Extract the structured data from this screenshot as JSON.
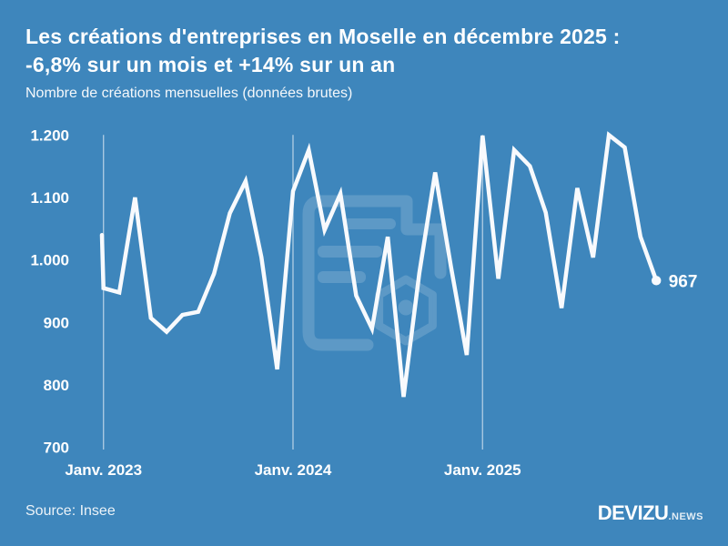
{
  "colors": {
    "background": "#3e86bc",
    "line": "#f8fafd",
    "text": "#ffffff",
    "grid": "rgba(255,255,255,0.55)",
    "watermark": "rgba(255,255,255,0.16)"
  },
  "header": {
    "title_line1": "Les créations d'entreprises en Moselle en décembre 2025 :",
    "title_line2": "-6,8% sur un mois et +14% sur un an",
    "subtitle": "Nombre de créations mensuelles (données brutes)"
  },
  "chart_data": {
    "type": "line",
    "title": "Nombre de créations mensuelles (données brutes)",
    "x": [
      "Déc. 2022",
      "Janv. 2023",
      "Févr. 2023",
      "Mars 2023",
      "Avr. 2023",
      "Mai 2023",
      "Juin 2023",
      "Juil. 2023",
      "Août 2023",
      "Sept. 2023",
      "Oct. 2023",
      "Nov. 2023",
      "Déc. 2023",
      "Janv. 2024",
      "Févr. 2024",
      "Mars 2024",
      "Avr. 2024",
      "Mai 2024",
      "Juin 2024",
      "Juil. 2024",
      "Août 2024",
      "Sept. 2024",
      "Oct. 2024",
      "Nov. 2024",
      "Déc. 2024",
      "Janv. 2025",
      "Févr. 2025",
      "Mars 2025",
      "Avr. 2025",
      "Mai 2025",
      "Juin 2025",
      "Juil. 2025",
      "Août 2025",
      "Sept. 2025",
      "Oct. 2025",
      "Nov. 2025",
      "Déc. 2025"
    ],
    "values": [
      1040,
      955,
      948,
      1100,
      907,
      885,
      912,
      917,
      978,
      1075,
      1126,
      1004,
      825,
      1110,
      1176,
      1048,
      1106,
      943,
      890,
      1037,
      781,
      979,
      1140,
      989,
      848,
      1199,
      970,
      1176,
      1150,
      1076,
      923,
      1115,
      1004,
      1200,
      1180,
      1037,
      967
    ],
    "ylim": [
      700,
      1200
    ],
    "yticks": [
      {
        "value": 1200,
        "label": "1.200"
      },
      {
        "value": 1100,
        "label": "1.100"
      },
      {
        "value": 1000,
        "label": "1.000"
      },
      {
        "value": 900,
        "label": "900"
      },
      {
        "value": 800,
        "label": "800"
      },
      {
        "value": 700,
        "label": "700"
      }
    ],
    "xticks": [
      {
        "label": "Janv. 2023",
        "month_index": 1
      },
      {
        "label": "Janv. 2024",
        "month_index": 13
      },
      {
        "label": "Janv. 2025",
        "month_index": 25
      }
    ],
    "end_label": "967",
    "grid": "vertical-gridlines-at-january-only",
    "legend": "none"
  },
  "footer": {
    "source": "Source: Insee",
    "brand": "DEVIZU",
    "brand_suffix": ".NEWS"
  }
}
